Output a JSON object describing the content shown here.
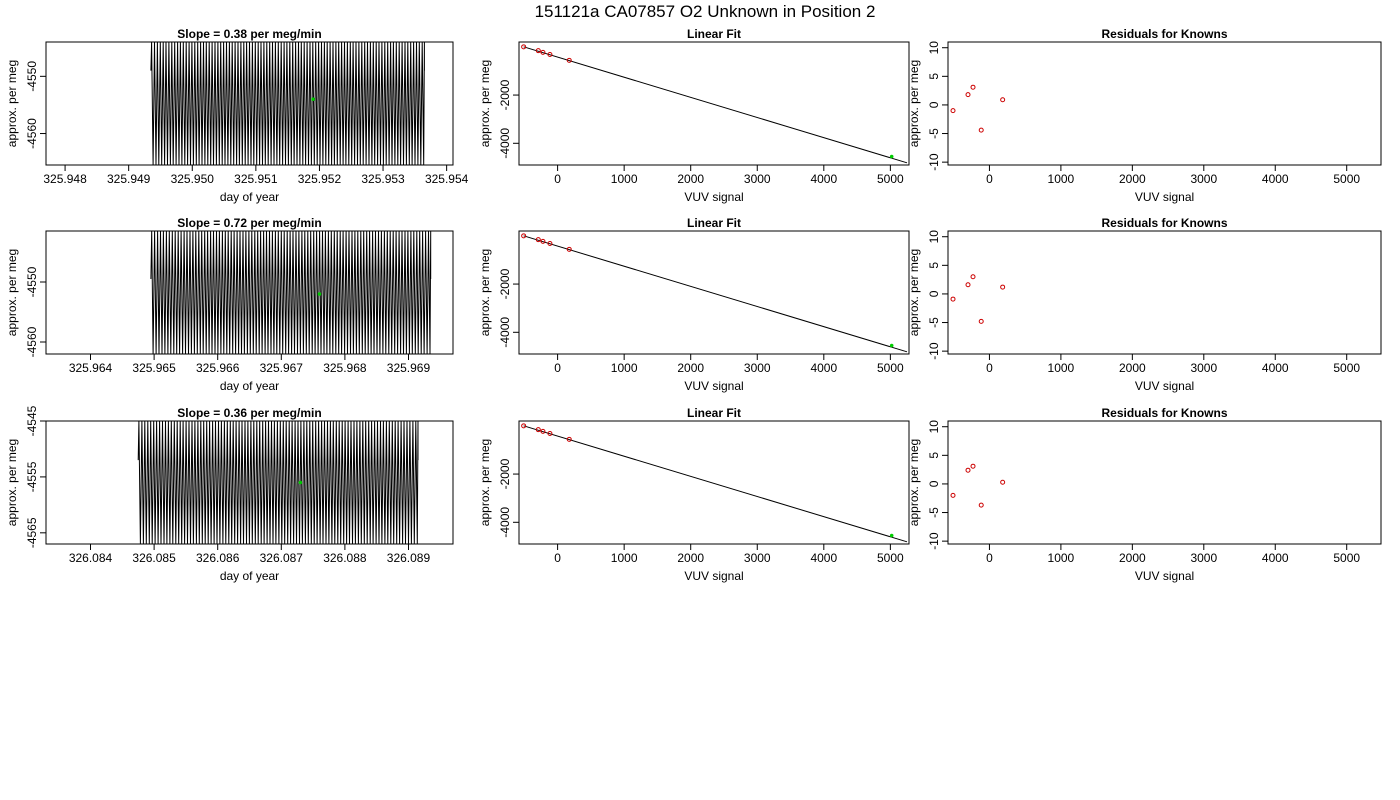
{
  "suptitle": "151121a     CA07857   O2 Unknown in Position  2",
  "colors": {
    "known": "#cc0000",
    "unknown": "#00cc00",
    "line": "#000000"
  },
  "chart_data": [
    {
      "type": "line",
      "panel": "row1-timeseries",
      "title": "Slope =  0.38  per meg/min",
      "xlabel": "day of year",
      "ylabel": "approx. per meg",
      "xlim": [
        325.9477,
        325.9541
      ],
      "ylim": [
        -4565.5,
        -4544
      ],
      "xticks": [
        "325.948",
        "325.949",
        "325.950",
        "325.951",
        "325.952",
        "325.953",
        "325.954"
      ],
      "yticks": [
        "-4550",
        "-4560"
      ],
      "trace": {
        "x_start": 325.94935,
        "x_end": 325.95365,
        "oscillations": 95,
        "low": -4565.5,
        "high": -4544,
        "start_level": -4549
      },
      "unknown_point": {
        "x": 325.9519,
        "y": -4554
      }
    },
    {
      "type": "scatter",
      "panel": "row1-fit",
      "title": "Linear Fit",
      "xlabel": "VUV signal",
      "ylabel": "approx. per meg",
      "xlim": [
        -580,
        5280
      ],
      "ylim": [
        -4900,
        200
      ],
      "xticks": [
        "0",
        "1000",
        "2000",
        "3000",
        "4000",
        "5000"
      ],
      "yticks": [
        "-2000",
        "-4000"
      ],
      "fit_line": {
        "x": [
          -510,
          5250
        ],
        "y": [
          0,
          -4810
        ]
      },
      "knowns": [
        {
          "x": -510,
          "y": 0
        },
        {
          "x": -290,
          "y": -160
        },
        {
          "x": -220,
          "y": -230
        },
        {
          "x": -115,
          "y": -320
        },
        {
          "x": 175,
          "y": -560
        }
      ],
      "unknown": {
        "x": 5020,
        "y": -4550
      }
    },
    {
      "type": "scatter",
      "panel": "row1-residuals",
      "title": "Residuals for Knowns",
      "xlabel": "VUV signal",
      "ylabel": "approx. per meg",
      "xlim": [
        -580,
        5480
      ],
      "ylim": [
        -10.5,
        11
      ],
      "xticks": [
        "0",
        "1000",
        "2000",
        "3000",
        "4000",
        "5000"
      ],
      "yticks": [
        "-10",
        "-5",
        "0",
        "5",
        "10"
      ],
      "points": [
        {
          "x": -510,
          "y": -1.0
        },
        {
          "x": -300,
          "y": 1.8
        },
        {
          "x": -230,
          "y": 3.1
        },
        {
          "x": -115,
          "y": -4.4
        },
        {
          "x": 185,
          "y": 0.9
        }
      ]
    },
    {
      "type": "line",
      "panel": "row2-timeseries",
      "title": "Slope =  0.72  per meg/min",
      "xlabel": "day of year",
      "ylabel": "approx. per meg",
      "xlim": [
        325.9633,
        325.9697
      ],
      "ylim": [
        -4562,
        -4541.5
      ],
      "xticks": [
        "325.964",
        "325.965",
        "325.966",
        "325.967",
        "325.968",
        "325.969"
      ],
      "yticks": [
        "-4550",
        "-4560"
      ],
      "trace": {
        "x_start": 325.96495,
        "x_end": 325.96935,
        "oscillations": 95,
        "low": -4562,
        "high": -4541.5,
        "start_level": -4549.5
      },
      "unknown_point": {
        "x": 325.9676,
        "y": -4552
      }
    },
    {
      "type": "scatter",
      "panel": "row2-fit",
      "title": "Linear Fit",
      "xlabel": "VUV signal",
      "ylabel": "approx. per meg",
      "xlim": [
        -580,
        5280
      ],
      "ylim": [
        -4900,
        200
      ],
      "xticks": [
        "0",
        "1000",
        "2000",
        "3000",
        "4000",
        "5000"
      ],
      "yticks": [
        "-2000",
        "-4000"
      ],
      "fit_line": {
        "x": [
          -510,
          5250
        ],
        "y": [
          0,
          -4810
        ]
      },
      "knowns": [
        {
          "x": -510,
          "y": 0
        },
        {
          "x": -290,
          "y": -160
        },
        {
          "x": -220,
          "y": -230
        },
        {
          "x": -115,
          "y": -320
        },
        {
          "x": 175,
          "y": -560
        }
      ],
      "unknown": {
        "x": 5020,
        "y": -4550
      }
    },
    {
      "type": "scatter",
      "panel": "row2-residuals",
      "title": "Residuals for Knowns",
      "xlabel": "VUV signal",
      "ylabel": "approx. per meg",
      "xlim": [
        -580,
        5480
      ],
      "ylim": [
        -10.5,
        11
      ],
      "xticks": [
        "0",
        "1000",
        "2000",
        "3000",
        "4000",
        "5000"
      ],
      "yticks": [
        "-10",
        "-5",
        "0",
        "5",
        "10"
      ],
      "points": [
        {
          "x": -510,
          "y": -0.9
        },
        {
          "x": -300,
          "y": 1.6
        },
        {
          "x": -230,
          "y": 3.0
        },
        {
          "x": -115,
          "y": -4.8
        },
        {
          "x": 185,
          "y": 1.2
        }
      ]
    },
    {
      "type": "line",
      "panel": "row3-timeseries",
      "title": "Slope =  0.36  per meg/min",
      "xlabel": "day of year",
      "ylabel": "approx. per meg",
      "xlim": [
        326.0833,
        326.0897
      ],
      "ylim": [
        -4567,
        -4545
      ],
      "xticks": [
        "326.084",
        "326.085",
        "326.086",
        "326.087",
        "326.088",
        "326.089"
      ],
      "yticks": [
        "-4545",
        "-4555",
        "-4565"
      ],
      "trace": {
        "x_start": 326.08475,
        "x_end": 326.08915,
        "oscillations": 95,
        "low": -4567,
        "high": -4545,
        "start_level": -4552
      },
      "unknown_point": {
        "x": 326.0873,
        "y": -4556
      }
    },
    {
      "type": "scatter",
      "panel": "row3-fit",
      "title": "Linear Fit",
      "xlabel": "VUV signal",
      "ylabel": "approx. per meg",
      "xlim": [
        -580,
        5280
      ],
      "ylim": [
        -4900,
        200
      ],
      "xticks": [
        "0",
        "1000",
        "2000",
        "3000",
        "4000",
        "5000"
      ],
      "yticks": [
        "-2000",
        "-4000"
      ],
      "fit_line": {
        "x": [
          -510,
          5250
        ],
        "y": [
          0,
          -4810
        ]
      },
      "knowns": [
        {
          "x": -510,
          "y": 0
        },
        {
          "x": -290,
          "y": -160
        },
        {
          "x": -220,
          "y": -230
        },
        {
          "x": -115,
          "y": -320
        },
        {
          "x": 175,
          "y": -560
        }
      ],
      "unknown": {
        "x": 5020,
        "y": -4550
      }
    },
    {
      "type": "scatter",
      "panel": "row3-residuals",
      "title": "Residuals for Knowns",
      "xlabel": "VUV signal",
      "ylabel": "approx. per meg",
      "xlim": [
        -580,
        5480
      ],
      "ylim": [
        -10.5,
        11
      ],
      "xticks": [
        "0",
        "1000",
        "2000",
        "3000",
        "4000",
        "5000"
      ],
      "yticks": [
        "-10",
        "-5",
        "0",
        "5",
        "10"
      ],
      "points": [
        {
          "x": -510,
          "y": -2.0
        },
        {
          "x": -300,
          "y": 2.4
        },
        {
          "x": -230,
          "y": 3.1
        },
        {
          "x": -115,
          "y": -3.7
        },
        {
          "x": 185,
          "y": 0.3
        }
      ]
    }
  ]
}
